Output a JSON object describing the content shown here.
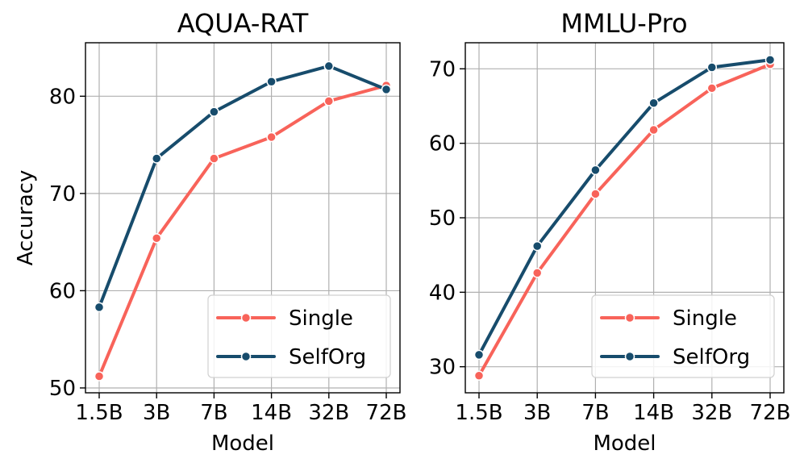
{
  "chart_data": [
    {
      "type": "line",
      "title": "AQUA-RAT",
      "xlabel": "Model",
      "ylabel": "Accuracy",
      "categories": [
        "1.5B",
        "3B",
        "7B",
        "14B",
        "32B",
        "72B"
      ],
      "ylim": [
        49.5,
        85.5
      ],
      "yticks": [
        50,
        60,
        70,
        80
      ],
      "ytick_labels": [
        "50",
        "60",
        "70",
        "80"
      ],
      "grid": true,
      "legend_position": "bottom-right",
      "series": [
        {
          "name": "Single",
          "color": "#f8635a",
          "values": [
            51.2,
            65.4,
            73.6,
            75.8,
            79.5,
            81.1
          ]
        },
        {
          "name": "SelfOrg",
          "color": "#174c6c",
          "values": [
            58.3,
            73.6,
            78.4,
            81.5,
            83.1,
            80.7
          ]
        }
      ]
    },
    {
      "type": "line",
      "title": "MMLU-Pro",
      "xlabel": "Model",
      "ylabel": "",
      "categories": [
        "1.5B",
        "3B",
        "7B",
        "14B",
        "32B",
        "72B"
      ],
      "ylim": [
        26.5,
        73.5
      ],
      "yticks": [
        30,
        40,
        50,
        60,
        70
      ],
      "ytick_labels": [
        "30",
        "40",
        "50",
        "60",
        "70"
      ],
      "grid": true,
      "legend_position": "bottom-right",
      "series": [
        {
          "name": "Single",
          "color": "#f8635a",
          "values": [
            28.8,
            42.6,
            53.2,
            61.8,
            67.4,
            70.6
          ]
        },
        {
          "name": "SelfOrg",
          "color": "#174c6c",
          "values": [
            31.6,
            46.2,
            56.4,
            65.4,
            70.2,
            71.2
          ]
        }
      ]
    }
  ]
}
